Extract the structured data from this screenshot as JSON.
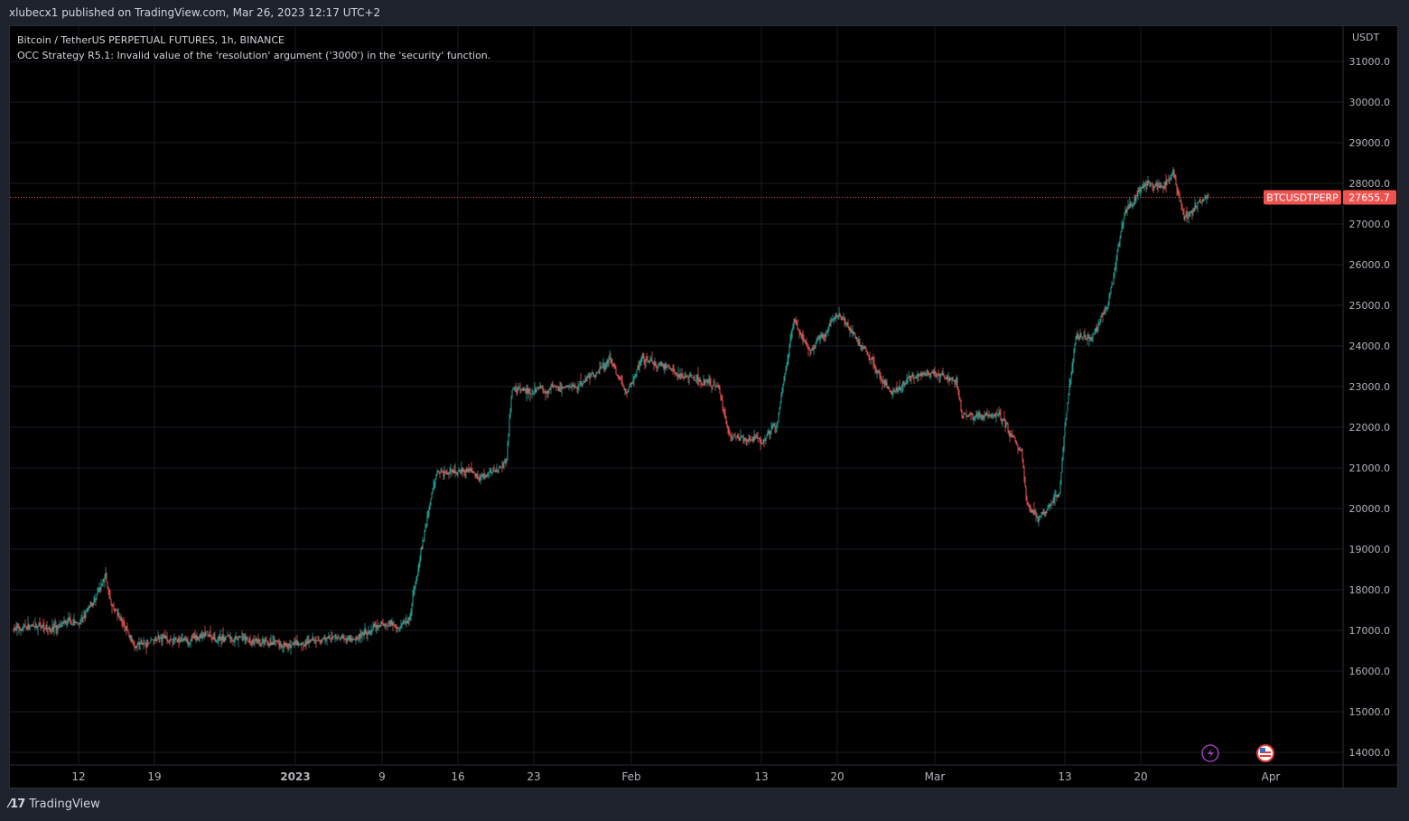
{
  "header": {
    "published": "xlubecx1 published on TradingView.com, Mar 26, 2023 12:17 UTC+2"
  },
  "legend": {
    "symbol": "Bitcoin / TetherUS PERPETUAL FUTURES, 1h, BINANCE",
    "error": "OCC Strategy R5.1: Invalid value of the 'resolution' argument ('3000') in the 'security' function."
  },
  "footer": {
    "brand": "TradingView"
  },
  "colors": {
    "up": "#26a69a",
    "down": "#ef5350",
    "grid": "#1a1d24",
    "text": "#b2b5be"
  },
  "chart_data": {
    "type": "candlestick",
    "title": "Bitcoin / TetherUS PERPETUAL FUTURES, 1h, BINANCE",
    "currency": "USDT",
    "ylim": [
      13700,
      31800
    ],
    "y_ticks": [
      14000,
      15000,
      16000,
      17000,
      18000,
      19000,
      20000,
      21000,
      22000,
      23000,
      24000,
      25000,
      26000,
      27000,
      28000,
      29000,
      30000,
      31000
    ],
    "x_ticks": [
      {
        "label": "12",
        "day": 6
      },
      {
        "label": "19",
        "day": 13
      },
      {
        "label": "2023",
        "day": 26
      },
      {
        "label": "9",
        "day": 34
      },
      {
        "label": "16",
        "day": 41
      },
      {
        "label": "23",
        "day": 48
      },
      {
        "label": "Feb",
        "day": 57
      },
      {
        "label": "13",
        "day": 69
      },
      {
        "label": "20",
        "day": 76
      },
      {
        "label": "Mar",
        "day": 85
      },
      {
        "label": "13",
        "day": 97
      },
      {
        "label": "20",
        "day": 104
      },
      {
        "label": "Apr",
        "day": 116
      }
    ],
    "x_unit": "days since 2022-12-06",
    "price_path": [
      [
        0,
        17050
      ],
      [
        6,
        17150
      ],
      [
        8,
        17900
      ],
      [
        8.5,
        18300
      ],
      [
        9,
        17600
      ],
      [
        11,
        16700
      ],
      [
        13,
        16700
      ],
      [
        20,
        16850
      ],
      [
        24,
        16550
      ],
      [
        26,
        16600
      ],
      [
        31,
        16850
      ],
      [
        34,
        17100
      ],
      [
        36.5,
        17300
      ],
      [
        37.5,
        18800
      ],
      [
        39,
        20900
      ],
      [
        41,
        21000
      ],
      [
        43.5,
        20800
      ],
      [
        45.5,
        21200
      ],
      [
        46,
        22900
      ],
      [
        48,
        22800
      ],
      [
        52,
        23000
      ],
      [
        55,
        23700
      ],
      [
        56.5,
        22900
      ],
      [
        58,
        23800
      ],
      [
        61,
        23300
      ],
      [
        65,
        23000
      ],
      [
        66,
        21800
      ],
      [
        69,
        21700
      ],
      [
        70.5,
        22200
      ],
      [
        72,
        24700
      ],
      [
        73.5,
        23800
      ],
      [
        76,
        24800
      ],
      [
        77,
        24500
      ],
      [
        79,
        23700
      ],
      [
        81,
        22900
      ],
      [
        83,
        23300
      ],
      [
        85,
        23400
      ],
      [
        87,
        23200
      ],
      [
        87.5,
        22300
      ],
      [
        91,
        22300
      ],
      [
        93,
        21400
      ],
      [
        93.5,
        20200
      ],
      [
        94.5,
        19800
      ],
      [
        96.5,
        20400
      ],
      [
        97,
        22000
      ],
      [
        98,
        24200
      ],
      [
        99.5,
        24300
      ],
      [
        101,
        25000
      ],
      [
        102.5,
        27300
      ],
      [
        104,
        27800
      ],
      [
        106,
        27900
      ],
      [
        107,
        28300
      ],
      [
        108,
        27200
      ],
      [
        110.3,
        27650
      ]
    ],
    "last_price": {
      "symbol": "BTCUSDTPERP",
      "value": "27655.7"
    }
  }
}
